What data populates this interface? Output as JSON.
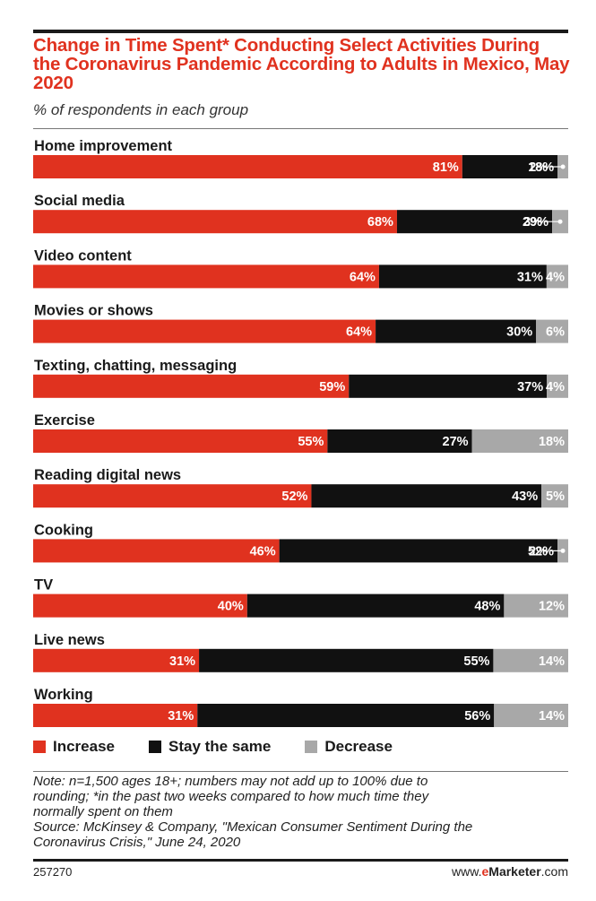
{
  "chart_data": {
    "type": "bar",
    "stacked": true,
    "orientation": "horizontal",
    "title": "Change in Time Spent* Conducting Select Activities During the Coronavirus Pandemic According to Adults in Mexico, May 2020",
    "subtitle": "% of respondents in each group",
    "categories": [
      "Home improvement",
      "Social media",
      "Video content",
      "Movies or shows",
      "Texting, chatting, messaging",
      "Exercise",
      "Reading digital news",
      "Cooking",
      "TV",
      "Live news",
      "Working"
    ],
    "series": [
      {
        "name": "Increase",
        "color": "#e0321f",
        "values": [
          81,
          68,
          64,
          64,
          59,
          55,
          52,
          46,
          40,
          31,
          31
        ]
      },
      {
        "name": "Stay the same",
        "color": "#111111",
        "values": [
          18,
          29,
          31,
          30,
          37,
          27,
          43,
          52,
          48,
          55,
          56
        ]
      },
      {
        "name": "Decrease",
        "color": "#a8a8a8",
        "values": [
          2,
          3,
          4,
          6,
          4,
          18,
          5,
          2,
          12,
          14,
          14
        ]
      }
    ],
    "value_labels": [
      [
        "81%",
        "18%",
        "2%"
      ],
      [
        "68%",
        "29%",
        "3%"
      ],
      [
        "64%",
        "31%",
        "4%"
      ],
      [
        "64%",
        "30%",
        "6%"
      ],
      [
        "59%",
        "37%",
        "4%"
      ],
      [
        "55%",
        "27%",
        "18%"
      ],
      [
        "52%",
        "43%",
        "5%"
      ],
      [
        "46%",
        "52%",
        "2%"
      ],
      [
        "40%",
        "48%",
        "12%"
      ],
      [
        "31%",
        "55%",
        "14%"
      ],
      [
        "31%",
        "56%",
        "14%"
      ]
    ],
    "legend_position": "bottom-left",
    "grid": false
  },
  "legend": {
    "increase": "Increase",
    "same": "Stay the same",
    "decrease": "Decrease"
  },
  "notes": {
    "line1": "Note: n=1,500 ages 18+; numbers may not add up to 100% due to",
    "line2": "rounding; *in the past two weeks compared to how much time they",
    "line3": "normally spent on them",
    "line4": "Source: McKinsey & Company, \"Mexican Consumer Sentiment During the",
    "line5": "Coronavirus Crisis,\" June 24, 2020"
  },
  "footer": {
    "chart_id": "257270",
    "brand_prefix": "www.",
    "brand_e": "e",
    "brand_name": "Marketer",
    "brand_suffix": ".com"
  }
}
